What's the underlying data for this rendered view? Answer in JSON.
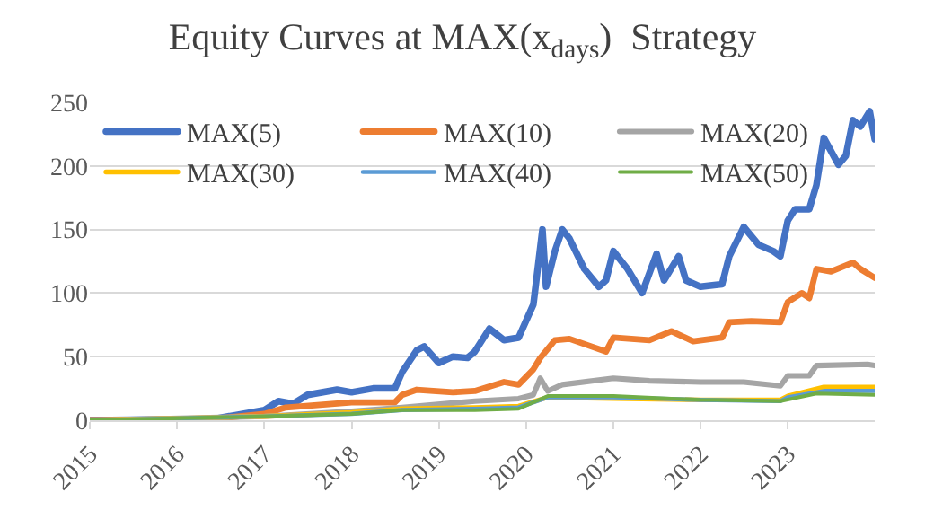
{
  "chart_data": {
    "type": "line",
    "title": "Equity Curves at MAX(x$_{days}$)  Strategy",
    "xlim": [
      "2015-01-01",
      "2023-12-31"
    ],
    "xticks": [
      {
        "value": "2015-01-01",
        "label": "2015"
      },
      {
        "value": "2016-01-01",
        "label": "2016"
      },
      {
        "value": "2017-01-01",
        "label": "2017"
      },
      {
        "value": "2018-01-01",
        "label": "2018"
      },
      {
        "value": "2019-01-01",
        "label": "2019"
      },
      {
        "value": "2020-01-01",
        "label": "2020"
      },
      {
        "value": "2021-01-01",
        "label": "2021"
      },
      {
        "value": "2022-01-01",
        "label": "2022"
      },
      {
        "value": "2023-01-01",
        "label": "2023"
      }
    ],
    "ylim": [
      0,
      250
    ],
    "yticks": [
      0,
      50,
      100,
      150,
      200,
      250
    ],
    "grid": "y",
    "legend": "top",
    "line_style": "solid",
    "marker": "none",
    "series": [
      {
        "name": "MAX(5)",
        "color": "#4472c4",
        "x": [
          "2015-01",
          "2016-06",
          "2016-09",
          "2017-01",
          "2017-03",
          "2017-05",
          "2017-07",
          "2017-11",
          "2018-01",
          "2018-04",
          "2018-07",
          "2018-08",
          "2018-10",
          "2018-11",
          "2019-01",
          "2019-03",
          "2019-05",
          "2019-06",
          "2019-08",
          "2019-10",
          "2019-12",
          "2020-02",
          "2020-03-10",
          "2020-03-25",
          "2020-05",
          "2020-06",
          "2020-07",
          "2020-09",
          "2020-11",
          "2020-12",
          "2021-01",
          "2021-03",
          "2021-05",
          "2021-07",
          "2021-08",
          "2021-10",
          "2021-11",
          "2022-01",
          "2022-04",
          "2022-05",
          "2022-07",
          "2022-09",
          "2022-11",
          "2022-12",
          "2023-01",
          "2023-02",
          "2023-04",
          "2023-05",
          "2023-06",
          "2023-08",
          "2023-09",
          "2023-10",
          "2023-11",
          "2023-12-10",
          "2023-12-31"
        ],
        "values": [
          0,
          1,
          4,
          8,
          15,
          13,
          20,
          24,
          22,
          25,
          25,
          38,
          55,
          58,
          45,
          50,
          49,
          54,
          72,
          63,
          65,
          91,
          150,
          105,
          133,
          150,
          143,
          119,
          105,
          110,
          133,
          119,
          100,
          131,
          110,
          129,
          110,
          105,
          107,
          129,
          152,
          138,
          133,
          129,
          157,
          166,
          166,
          185,
          222,
          201,
          208,
          236,
          231,
          243,
          221
        ]
      },
      {
        "name": "MAX(10)",
        "color": "#ed7d31",
        "x": [
          "2015-01",
          "2016-06",
          "2017-01",
          "2017-04",
          "2018-01",
          "2018-07",
          "2018-08",
          "2018-10",
          "2019-03",
          "2019-06",
          "2019-10",
          "2019-12",
          "2020-02",
          "2020-03",
          "2020-05",
          "2020-07",
          "2020-10",
          "2020-12",
          "2021-01",
          "2021-06",
          "2021-09",
          "2021-12",
          "2022-04",
          "2022-05",
          "2022-08",
          "2022-12",
          "2023-01",
          "2023-03",
          "2023-04",
          "2023-05",
          "2023-07",
          "2023-10",
          "2023-11",
          "2023-12-31"
        ],
        "values": [
          0,
          1,
          5,
          10,
          14,
          14,
          20,
          24,
          22,
          23,
          30,
          28,
          40,
          49,
          63,
          64,
          58,
          54,
          65,
          63,
          70,
          62,
          65,
          77,
          78,
          77,
          93,
          100,
          96,
          119,
          117,
          124,
          119,
          112
        ]
      },
      {
        "name": "MAX(20)",
        "color": "#a5a5a5",
        "x": [
          "2015-01",
          "2017-01",
          "2018-01",
          "2018-08",
          "2019-06",
          "2019-12",
          "2020-02",
          "2020-03",
          "2020-04",
          "2020-06",
          "2021-01",
          "2021-06",
          "2022-01",
          "2022-07",
          "2022-12",
          "2023-01",
          "2023-04",
          "2023-05",
          "2023-12",
          "2023-12-31"
        ],
        "values": [
          0,
          3,
          7,
          10,
          15,
          17,
          20,
          33,
          23,
          28,
          33,
          31,
          30,
          30,
          27,
          35,
          35,
          43,
          44,
          43
        ]
      },
      {
        "name": "MAX(30)",
        "color": "#ffc000",
        "x": [
          "2015-01",
          "2017-01",
          "2018-01",
          "2018-08",
          "2019-06",
          "2019-12",
          "2020-04",
          "2021-01",
          "2022-01",
          "2022-12",
          "2023-01",
          "2023-06",
          "2023-12-31"
        ],
        "values": [
          0,
          3,
          6,
          9,
          10,
          11,
          18,
          17,
          16,
          16,
          19,
          26,
          26
        ]
      },
      {
        "name": "MAX(40)",
        "color": "#5b9bd5",
        "x": [
          "2015-01",
          "2017-01",
          "2018-01",
          "2018-08",
          "2019-06",
          "2019-12",
          "2020-04",
          "2021-01",
          "2022-01",
          "2022-12",
          "2023-01",
          "2023-06",
          "2023-12-31"
        ],
        "values": [
          0,
          3,
          5,
          8,
          9,
          10,
          18,
          18,
          16,
          15,
          18,
          23,
          23
        ]
      },
      {
        "name": "MAX(50)",
        "color": "#70ad47",
        "x": [
          "2015-01",
          "2017-01",
          "2018-01",
          "2018-08",
          "2019-06",
          "2019-12",
          "2020-04",
          "2021-01",
          "2022-01",
          "2022-12",
          "2023-05",
          "2023-12-31"
        ],
        "values": [
          0,
          3,
          5,
          8,
          8,
          9,
          19,
          19,
          16,
          15,
          21,
          20
        ]
      }
    ]
  }
}
